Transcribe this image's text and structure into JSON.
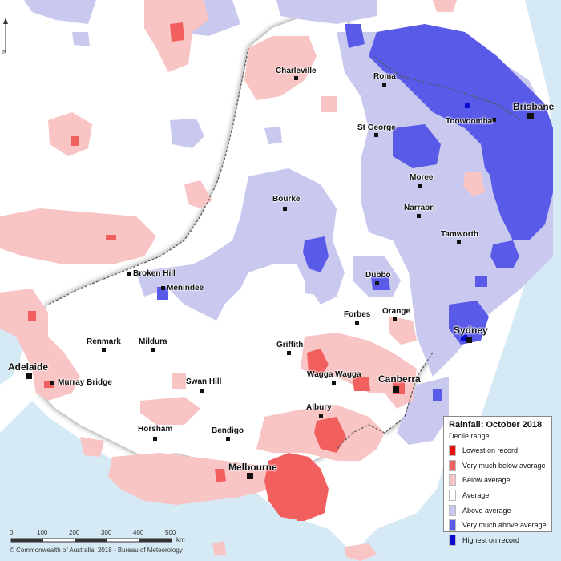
{
  "map": {
    "legend_title": "Rainfall: October 2018",
    "legend_subtitle": "Decile range",
    "legend_items": [
      {
        "label": "Lowest on record",
        "color": "#e80f0f"
      },
      {
        "label": "Very much below average",
        "color": "#f25f5f"
      },
      {
        "label": "Below average",
        "color": "#f9c4c4"
      },
      {
        "label": "Average",
        "color": "#ffffff"
      },
      {
        "label": "Above average",
        "color": "#c9c9f0"
      },
      {
        "label": "Very much above average",
        "color": "#5a5ae8"
      },
      {
        "label": "Highest on record",
        "color": "#0a0ad0"
      }
    ],
    "scale": {
      "ticks": [
        "0",
        "100",
        "200",
        "300",
        "400",
        "500"
      ],
      "unit": "km"
    },
    "north_label": "N",
    "copyright": "© Commonwealth of Australia, 2018 - Bureau of Meteorology",
    "places": {
      "charleville": "Charleville",
      "roma": "Roma",
      "brisbane": "Brisbane",
      "toowoomba": "Toowoomba",
      "st_george": "St George",
      "moree": "Moree",
      "bourke": "Bourke",
      "narrabri": "Narrabri",
      "tamworth": "Tamworth",
      "broken_hill": "Broken Hill",
      "menindee": "Menindee",
      "dubbo": "Dubbo",
      "orange": "Orange",
      "forbes": "Forbes",
      "sydney": "Sydney",
      "renmark": "Renmark",
      "mildura": "Mildura",
      "griffith": "Griffith",
      "adelaide": "Adelaide",
      "murray_bridge": "Murray Bridge",
      "swan_hill": "Swan Hill",
      "wagga_wagga": "Wagga Wagga",
      "canberra": "Canberra",
      "albury": "Albury",
      "horsham": "Horsham",
      "bendigo": "Bendigo",
      "melbourne": "Melbourne"
    }
  }
}
